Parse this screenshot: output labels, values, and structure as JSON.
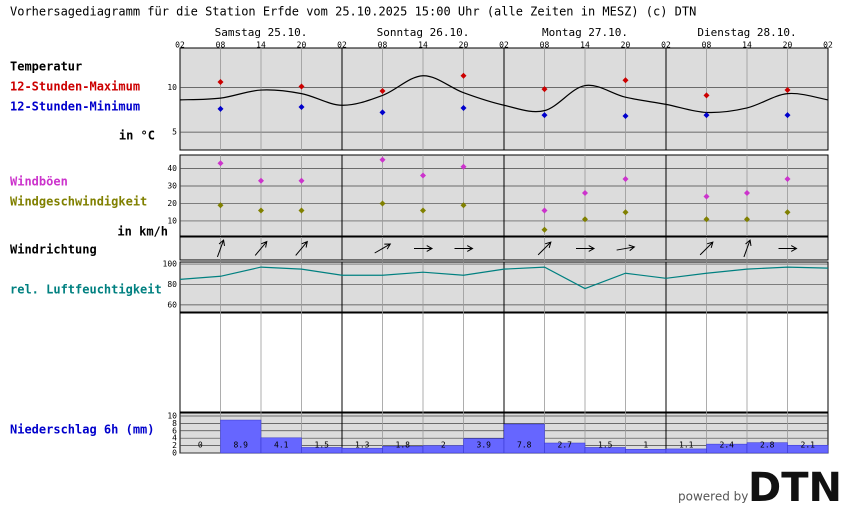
{
  "title": "Vorhersagediagramm für die Station Erfde vom 25.10.2025 15:00 Uhr (alle Zeiten in MESZ)   (c) DTN",
  "days": [
    "Samstag 25.10.",
    "Sonntag 26.10.",
    "Montag 27.10.",
    "Dienstag 28.10."
  ],
  "footer": {
    "powered_by": "powered by",
    "logo": "DTN"
  },
  "chart_data": [
    {
      "type": "line",
      "label": "Temperatur",
      "y_label": "in °C",
      "categories": [
        "02",
        "08",
        "14",
        "20",
        "02",
        "08",
        "14",
        "20",
        "02",
        "08",
        "14",
        "20",
        "02",
        "08",
        "14",
        "20",
        "02"
      ],
      "ylim": [
        3,
        14.4
      ],
      "yticks": [
        5,
        10
      ],
      "grid": true,
      "series": [
        {
          "name": "Temperatur",
          "kind": "line",
          "color": "#000000",
          "values": [
            8.6,
            8.8,
            9.7,
            9.3,
            8.0,
            9.1,
            11.3,
            9.4,
            8.0,
            7.4,
            10.2,
            8.9,
            8.1,
            7.2,
            7.7,
            9.3,
            8.6
          ]
        },
        {
          "name": "12-Stunden-Maximum",
          "kind": "points",
          "color": "#cc0000",
          "values": [
            null,
            10.6,
            null,
            10.1,
            null,
            9.6,
            null,
            11.3,
            null,
            9.8,
            null,
            10.8,
            null,
            9.1,
            null,
            9.7,
            null
          ]
        },
        {
          "name": "12-Stunden-Minimum",
          "kind": "points",
          "color": "#0000cc",
          "values": [
            null,
            7.6,
            null,
            7.8,
            null,
            7.2,
            null,
            7.7,
            null,
            6.9,
            null,
            6.8,
            null,
            6.9,
            null,
            6.9,
            null
          ]
        }
      ]
    },
    {
      "type": "scatter",
      "y_label": "in km/h",
      "ylim": [
        1.4,
        47.7
      ],
      "yticks": [
        10,
        20,
        30,
        40
      ],
      "grid": true,
      "series": [
        {
          "name": "Windböen",
          "color": "#cc33cc",
          "values": [
            null,
            43,
            33,
            33,
            null,
            45,
            36,
            41,
            null,
            16,
            26,
            34,
            null,
            24,
            26,
            34,
            null
          ]
        },
        {
          "name": "Windgeschwindigkeit",
          "color": "#808000",
          "values": [
            null,
            19,
            16,
            16,
            null,
            20,
            16,
            19,
            null,
            5,
            11,
            15,
            null,
            11,
            11,
            15,
            null
          ]
        }
      ]
    },
    {
      "type": "arrows",
      "label": "Windrichtung",
      "values": [
        null,
        20,
        40,
        40,
        null,
        60,
        90,
        90,
        null,
        45,
        90,
        80,
        null,
        45,
        20,
        90,
        null
      ]
    },
    {
      "type": "line",
      "ylim": [
        53,
        102
      ],
      "yticks": [
        60,
        80,
        100
      ],
      "grid": true,
      "series": [
        {
          "name": "rel. Luftfeuchtigkeit",
          "kind": "line",
          "color": "#008080",
          "values": [
            85,
            88,
            97,
            95,
            89,
            89,
            92,
            89,
            95,
            97,
            76,
            91,
            86,
            91,
            95,
            97,
            96
          ]
        }
      ]
    },
    {
      "type": "bar",
      "label": "Niederschlag 6h (mm)",
      "color": "#6666ff",
      "ylim": [
        0,
        10.8
      ],
      "yticks": [
        0,
        2,
        4,
        6,
        8,
        10
      ],
      "grid": true,
      "values": [
        0,
        8.9,
        4.1,
        1.5,
        1.3,
        1.8,
        2,
        3.9,
        7.8,
        2.7,
        1.5,
        1,
        1.1,
        2.4,
        2.8,
        2.1
      ]
    }
  ]
}
